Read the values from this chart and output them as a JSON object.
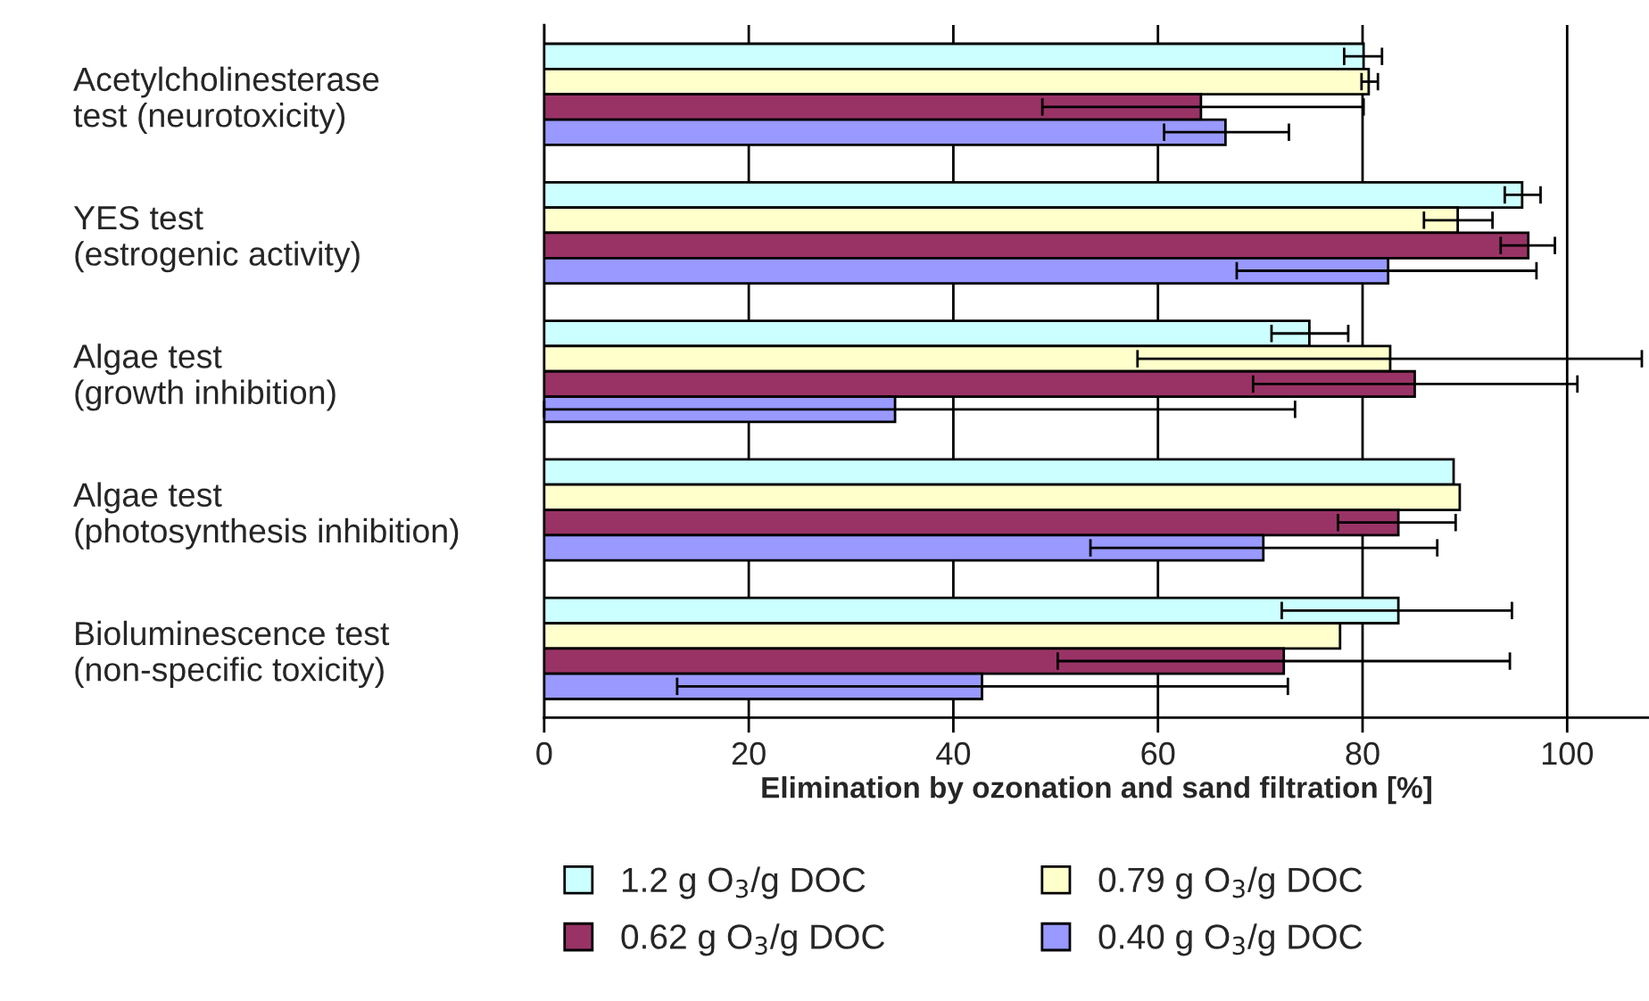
{
  "chart_data": {
    "type": "bar",
    "orientation": "horizontal",
    "categories": [
      "Acetylcholinesterase\ntest (neurotoxicity)",
      "YES test\n(estrogenic activity)",
      "Algae test\n(growth inhibition)",
      "Algae test\n(photosynthesis inhibition)",
      "Bioluminescence test\n(non-specific toxicity)"
    ],
    "xlabel": "Elimination by ozonation and sand filtration [%]",
    "xlim": [
      0,
      108
    ],
    "xticks": [
      0,
      20,
      40,
      60,
      80,
      100
    ],
    "grid": "x",
    "legend": "bottom",
    "series": [
      {
        "name": "1.2 g O$_{3}$/g DOC",
        "color": "#ccffff",
        "values": [
          80.1,
          95.6,
          74.8,
          88.9,
          83.5
        ],
        "errors": [
          [
            78.2,
            81.9
          ],
          [
            93.9,
            97.4
          ],
          [
            71.1,
            78.6
          ],
          null,
          [
            72.1,
            94.6
          ]
        ]
      },
      {
        "name": "0.79 g O$_{3}$/g DOC",
        "color": "#ffffcc",
        "values": [
          80.6,
          89.3,
          82.7,
          89.5,
          77.8
        ],
        "errors": [
          [
            79.9,
            81.5
          ],
          [
            86.0,
            92.7
          ],
          [
            58.0,
            107.3
          ],
          null,
          null
        ]
      },
      {
        "name": "0.62 g O$_{3}$/g DOC",
        "color": "#993366",
        "values": [
          64.2,
          96.2,
          85.1,
          83.5,
          72.3
        ],
        "errors": [
          [
            48.7,
            80.1
          ],
          [
            93.5,
            98.8
          ],
          [
            69.3,
            101.0
          ],
          [
            77.6,
            89.1
          ],
          [
            50.2,
            94.4
          ]
        ]
      },
      {
        "name": "0.40 g O$_{3}$/g DOC",
        "color": "#9999ff",
        "values": [
          66.6,
          82.5,
          34.3,
          70.3,
          42.8
        ],
        "errors": [
          [
            60.6,
            72.8
          ],
          [
            67.7,
            97.0
          ],
          [
            0,
            73.4
          ],
          [
            53.4,
            87.3
          ],
          [
            13.0,
            72.7
          ]
        ]
      }
    ]
  }
}
